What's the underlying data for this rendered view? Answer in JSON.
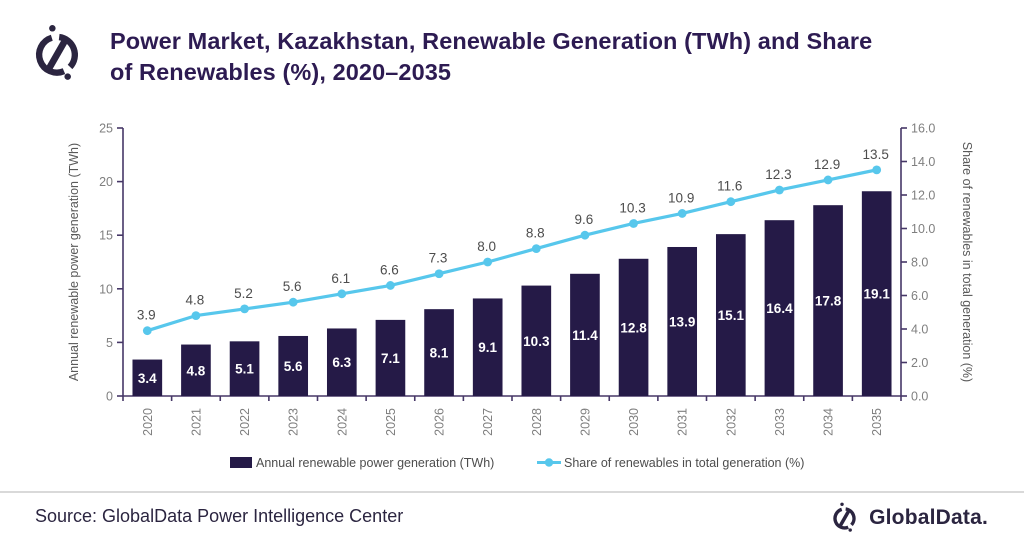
{
  "header": {
    "title": "Power Market, Kazakhstan, Renewable Generation (TWh) and Share of Renewables (%), 2020–2035"
  },
  "footer": {
    "source": "Source: GlobalData Power Intelligence Center",
    "brand": "GlobalData."
  },
  "colors": {
    "bar": "#251a47",
    "line": "#57c7ec",
    "title": "#2d1b52",
    "axis": "#463767",
    "tick_label": "#7f7f7f",
    "axis_title": "#595959",
    "line_value_label": "#4d4d4d",
    "bar_value_label": "#ffffff",
    "legend_text": "#4d4d4d",
    "brand_navy": "#2b2540",
    "divider": "#d9d9d9"
  },
  "chart_data": {
    "type": "bar+line combo",
    "categories": [
      "2020",
      "2021",
      "2022",
      "2023",
      "2024",
      "2025",
      "2026",
      "2027",
      "2028",
      "2029",
      "2030",
      "2031",
      "2032",
      "2033",
      "2034",
      "2035"
    ],
    "series": [
      {
        "name": "Annual renewable power generation (TWh)",
        "type": "bar",
        "axis": "left",
        "values": [
          3.4,
          4.8,
          5.1,
          5.6,
          6.3,
          7.1,
          8.1,
          9.1,
          10.3,
          11.4,
          12.8,
          13.9,
          15.1,
          16.4,
          17.8,
          19.1
        ]
      },
      {
        "name": "Share of renewables in total generation (%)",
        "type": "line",
        "axis": "right",
        "values": [
          3.9,
          4.8,
          5.2,
          5.6,
          6.1,
          6.6,
          7.3,
          8.0,
          8.8,
          9.6,
          10.3,
          10.9,
          11.6,
          12.3,
          12.9,
          13.5
        ]
      }
    ],
    "left_axis": {
      "label": "Annual renewable power generation (TWh)",
      "min": 0,
      "max": 25,
      "step": 5
    },
    "right_axis": {
      "label": "Share of renewables in total generation (%)",
      "min": 0,
      "max": 16,
      "step": 2
    },
    "legend_position": "bottom",
    "grid": false,
    "data_labels": true
  }
}
